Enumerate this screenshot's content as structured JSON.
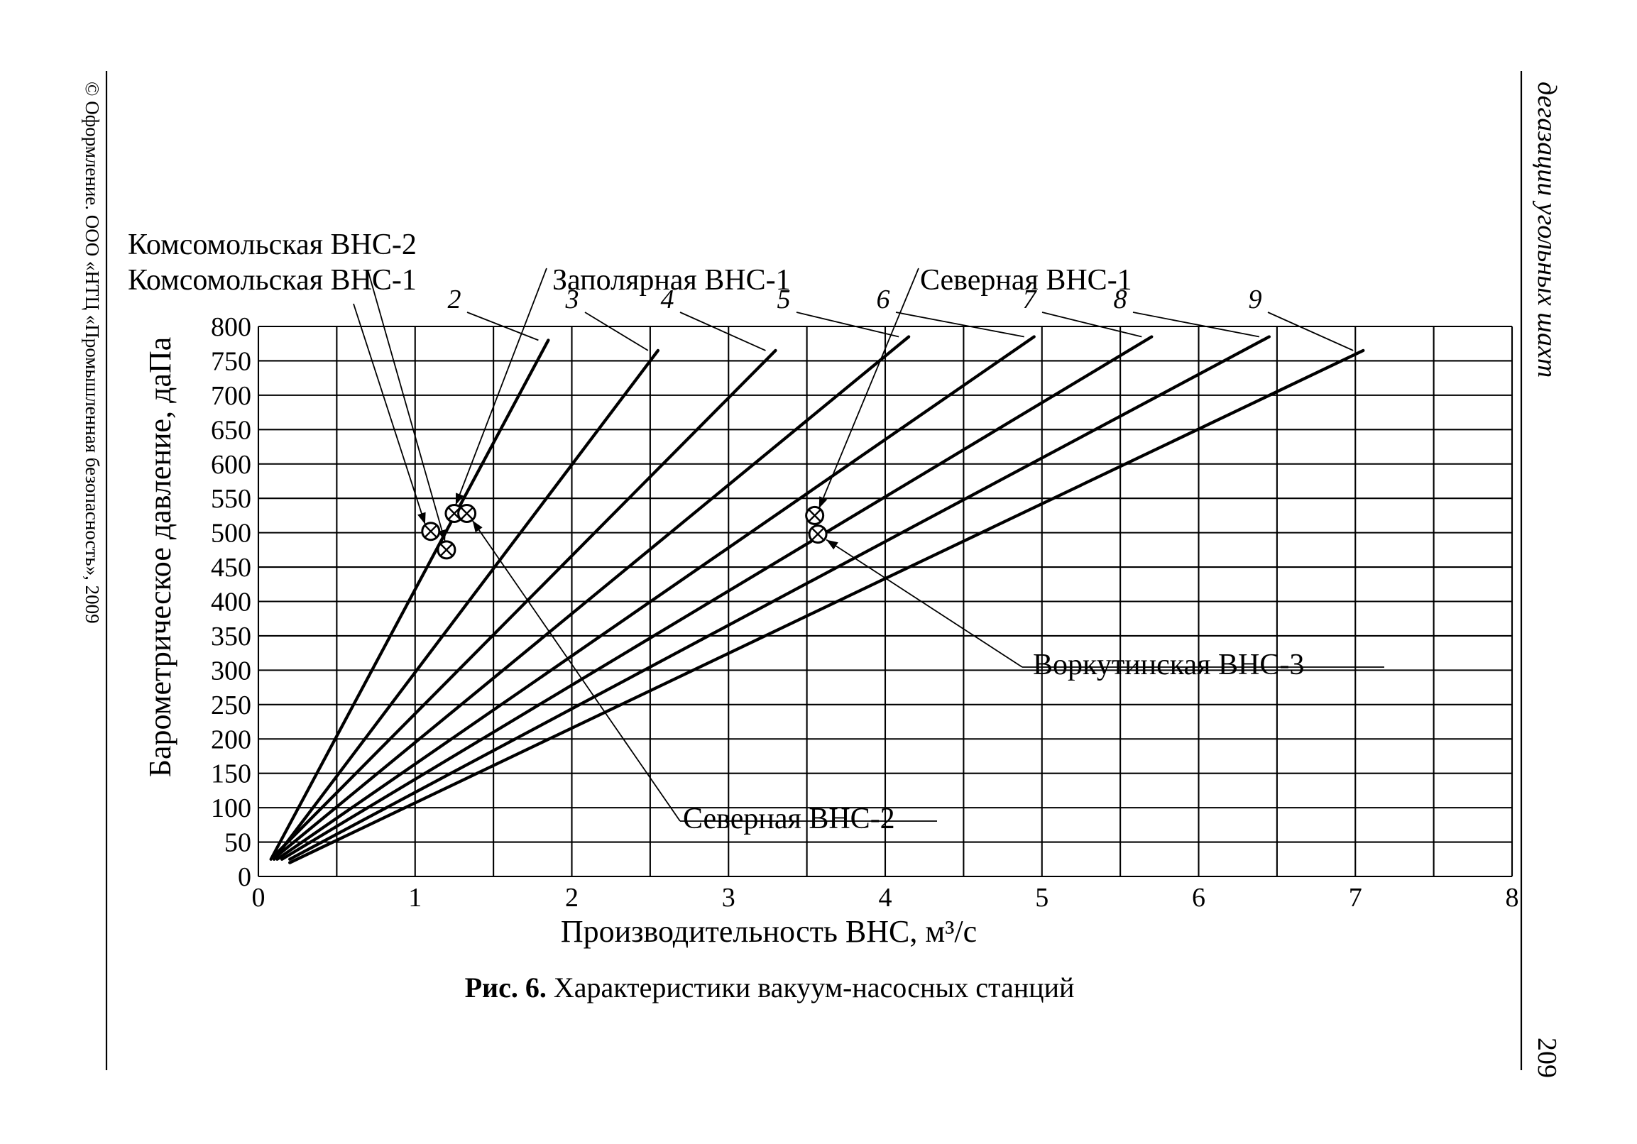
{
  "page": {
    "running_head": "дегазации угольных шахт",
    "page_number": "209",
    "copyright": "© Оформление. ООО «НТЦ «Промышленная безопасность», 2009",
    "figure_caption": {
      "label": "Рис. 6.",
      "text": " Характеристики вакуум-насосных станций"
    }
  },
  "chart_data": {
    "type": "line",
    "xlabel": "Производительность ВНС, м³/с",
    "ylabel": "Барометрическое давление, даПа",
    "xlim": [
      0,
      8
    ],
    "ylim": [
      0,
      800
    ],
    "x_ticks": [
      "0",
      "1",
      "2",
      "3",
      "4",
      "5",
      "6",
      "7",
      "8"
    ],
    "y_ticks": [
      "0",
      "50",
      "100",
      "150",
      "200",
      "250",
      "300",
      "350",
      "400",
      "450",
      "500",
      "550",
      "600",
      "650",
      "700",
      "750",
      "800"
    ],
    "grid": true,
    "series": [
      {
        "name": "2",
        "x": [
          0.08,
          1.85
        ],
        "y": [
          25,
          780
        ]
      },
      {
        "name": "3",
        "x": [
          0.1,
          2.55
        ],
        "y": [
          25,
          765
        ]
      },
      {
        "name": "4",
        "x": [
          0.1,
          3.3
        ],
        "y": [
          30,
          765
        ]
      },
      {
        "name": "5",
        "x": [
          0.12,
          4.15
        ],
        "y": [
          30,
          785
        ]
      },
      {
        "name": "6",
        "x": [
          0.12,
          4.95
        ],
        "y": [
          25,
          785
        ]
      },
      {
        "name": "7",
        "x": [
          0.15,
          5.7
        ],
        "y": [
          25,
          785
        ]
      },
      {
        "name": "8",
        "x": [
          0.2,
          6.45
        ],
        "y": [
          25,
          785
        ]
      },
      {
        "name": "9",
        "x": [
          0.2,
          7.05
        ],
        "y": [
          20,
          765
        ]
      }
    ],
    "stations": [
      {
        "name": "Комсомольская ВНС-2",
        "x": 1.1,
        "y": 502
      },
      {
        "name": "Комсомольская ВНС-1",
        "x": 1.2,
        "y": 475
      },
      {
        "name": "Заполярная ВНС-1",
        "x": 1.25,
        "y": 528
      },
      {
        "name": "Северная ВНС-1",
        "x": 3.55,
        "y": 525
      },
      {
        "name": "Северная ВНС-2",
        "x": 1.33,
        "y": 528
      },
      {
        "name": "Воркутинская ВНС-3",
        "x": 3.57,
        "y": 498
      }
    ],
    "station_labels": {
      "komsomol_2": "Комсомольская ВНС-2",
      "komsomol_1": "Комсомольская ВНС-1",
      "zapolyar_1": "Заполярная ВНС-1",
      "severn_1": "Северная ВНС-1",
      "severn_2": "Северная ВНС-2",
      "vorkut_3": "Воркутинская ВНС-3"
    }
  }
}
